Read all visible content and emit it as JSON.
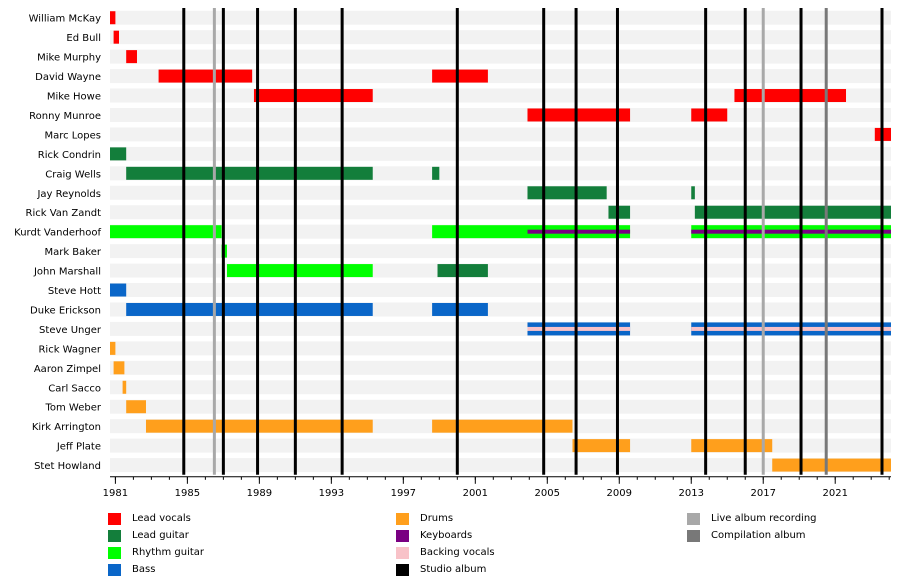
{
  "chart_data": {
    "type": "timeline",
    "x_range": [
      1980.7,
      2024.1
    ],
    "x_ticks": [
      1981,
      1985,
      1989,
      1993,
      1997,
      2001,
      2005,
      2009,
      2013,
      2017,
      2021
    ],
    "colors": {
      "Lead vocals": "#ff0000",
      "Lead guitar": "#137e3b",
      "Rhythm guitar": "#00ff00",
      "Bass": "#0a66c8",
      "Drums": "#ff9f1c",
      "Keyboards": "#7a0082",
      "Backing vocals": "#f8c2c8",
      "Studio album": "#000000",
      "Live album recording": "#a8a8a8",
      "Compilation album": "#787878"
    },
    "members": [
      {
        "name": "William McKay",
        "bars": [
          {
            "role": "Lead vocals",
            "start": 1980.7,
            "end": 1981.0
          }
        ]
      },
      {
        "name": "Ed Bull",
        "bars": [
          {
            "role": "Lead vocals",
            "start": 1980.9,
            "end": 1981.2
          }
        ]
      },
      {
        "name": "Mike Murphy",
        "bars": [
          {
            "role": "Lead vocals",
            "start": 1981.6,
            "end": 1982.2
          }
        ]
      },
      {
        "name": "David Wayne",
        "bars": [
          {
            "role": "Lead vocals",
            "start": 1983.4,
            "end": 1988.6
          },
          {
            "role": "Lead vocals",
            "start": 1998.6,
            "end": 2001.7
          }
        ]
      },
      {
        "name": "Mike Howe",
        "bars": [
          {
            "role": "Lead vocals",
            "start": 1988.7,
            "end": 1995.3
          },
          {
            "role": "Lead vocals",
            "start": 2015.4,
            "end": 2021.6
          }
        ]
      },
      {
        "name": "Ronny Munroe",
        "bars": [
          {
            "role": "Lead vocals",
            "start": 2003.9,
            "end": 2009.6
          },
          {
            "role": "Lead vocals",
            "start": 2013.0,
            "end": 2015.0
          }
        ]
      },
      {
        "name": "Marc Lopes",
        "bars": [
          {
            "role": "Lead vocals",
            "start": 2023.2,
            "end": 2024.1
          }
        ]
      },
      {
        "name": "Rick Condrin",
        "bars": [
          {
            "role": "Lead guitar",
            "start": 1980.7,
            "end": 1981.6
          }
        ]
      },
      {
        "name": "Craig Wells",
        "bars": [
          {
            "role": "Lead guitar",
            "start": 1981.6,
            "end": 1995.3
          },
          {
            "role": "Lead guitar",
            "start": 1998.6,
            "end": 1999.0
          }
        ]
      },
      {
        "name": "Jay Reynolds",
        "bars": [
          {
            "role": "Lead guitar",
            "start": 2003.9,
            "end": 2008.3
          },
          {
            "role": "Lead guitar",
            "start": 2013.0,
            "end": 2013.2
          }
        ]
      },
      {
        "name": "Rick Van Zandt",
        "bars": [
          {
            "role": "Lead guitar",
            "start": 2008.4,
            "end": 2009.6
          },
          {
            "role": "Lead guitar",
            "start": 2013.2,
            "end": 2024.1
          }
        ]
      },
      {
        "name": "Kurdt Vanderhoof",
        "bars": [
          {
            "role": "Rhythm guitar",
            "start": 1980.7,
            "end": 1986.9
          },
          {
            "role": "Rhythm guitar",
            "start": 1998.6,
            "end": 2009.6,
            "secondary": "Keyboards",
            "secondary_start": 2003.9
          },
          {
            "role": "Rhythm guitar",
            "start": 2013.0,
            "end": 2024.1,
            "secondary": "Keyboards"
          }
        ]
      },
      {
        "name": "Mark Baker",
        "bars": [
          {
            "role": "Rhythm guitar",
            "start": 1986.9,
            "end": 1987.2
          }
        ]
      },
      {
        "name": "John Marshall",
        "bars": [
          {
            "role": "Rhythm guitar",
            "start": 1987.2,
            "end": 1995.3
          },
          {
            "role": "Lead guitar",
            "start": 1998.9,
            "end": 2001.7
          }
        ]
      },
      {
        "name": "Steve Hott",
        "bars": [
          {
            "role": "Bass",
            "start": 1980.7,
            "end": 1981.6
          }
        ]
      },
      {
        "name": "Duke Erickson",
        "bars": [
          {
            "role": "Bass",
            "start": 1981.6,
            "end": 1995.3
          },
          {
            "role": "Bass",
            "start": 1998.6,
            "end": 2001.7
          }
        ]
      },
      {
        "name": "Steve Unger",
        "bars": [
          {
            "role": "Bass",
            "start": 2003.9,
            "end": 2009.6,
            "secondary": "Backing vocals"
          },
          {
            "role": "Bass",
            "start": 2013.0,
            "end": 2024.1,
            "secondary": "Backing vocals"
          }
        ]
      },
      {
        "name": "Rick Wagner",
        "bars": [
          {
            "role": "Drums",
            "start": 1980.7,
            "end": 1981.0
          }
        ]
      },
      {
        "name": "Aaron Zimpel",
        "bars": [
          {
            "role": "Drums",
            "start": 1980.9,
            "end": 1981.5
          }
        ]
      },
      {
        "name": "Carl Sacco",
        "bars": [
          {
            "role": "Drums",
            "start": 1981.4,
            "end": 1981.6
          }
        ]
      },
      {
        "name": "Tom Weber",
        "bars": [
          {
            "role": "Drums",
            "start": 1981.6,
            "end": 1982.7
          }
        ]
      },
      {
        "name": "Kirk Arrington",
        "bars": [
          {
            "role": "Drums",
            "start": 1982.7,
            "end": 1995.3
          },
          {
            "role": "Drums",
            "start": 1998.6,
            "end": 2006.4
          }
        ]
      },
      {
        "name": "Jeff Plate",
        "bars": [
          {
            "role": "Drums",
            "start": 2006.4,
            "end": 2009.6
          },
          {
            "role": "Drums",
            "start": 2013.0,
            "end": 2017.5
          }
        ]
      },
      {
        "name": "Stet Howland",
        "bars": [
          {
            "role": "Drums",
            "start": 2017.5,
            "end": 2024.1
          }
        ]
      }
    ],
    "events": [
      {
        "type": "Studio album",
        "year": 1984.8
      },
      {
        "type": "Live album recording",
        "year": 1986.5
      },
      {
        "type": "Studio album",
        "year": 1987.0
      },
      {
        "type": "Studio album",
        "year": 1988.9
      },
      {
        "type": "Studio album",
        "year": 1991.0
      },
      {
        "type": "Studio album",
        "year": 1993.6
      },
      {
        "type": "Studio album",
        "year": 2000.0
      },
      {
        "type": "Studio album",
        "year": 2004.8
      },
      {
        "type": "Studio album",
        "year": 2006.6
      },
      {
        "type": "Studio album",
        "year": 2008.9
      },
      {
        "type": "Studio album",
        "year": 2013.8
      },
      {
        "type": "Studio album",
        "year": 2016.0
      },
      {
        "type": "Live album recording",
        "year": 2017.0
      },
      {
        "type": "Studio album",
        "year": 2019.1
      },
      {
        "type": "Compilation album",
        "year": 2020.5
      },
      {
        "type": "Studio album",
        "year": 2023.6
      }
    ],
    "legend_columns": [
      [
        "Lead vocals",
        "Lead guitar",
        "Rhythm guitar",
        "Bass"
      ],
      [
        "Drums",
        "Keyboards",
        "Backing vocals",
        "Studio album"
      ],
      [
        "Live album recording",
        "Compilation album"
      ]
    ]
  }
}
